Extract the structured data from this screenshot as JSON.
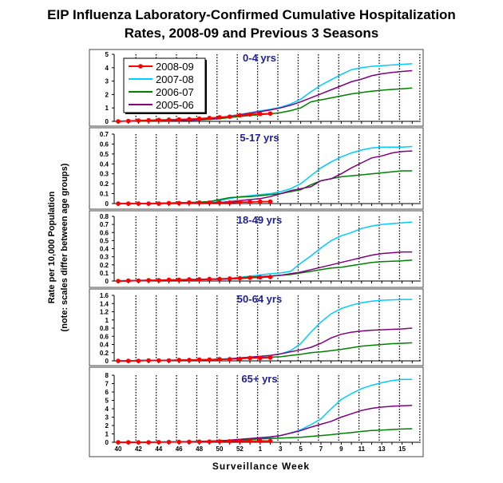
{
  "title_line1": "EIP Influenza Laboratory-Confirmed Cumulative Hospitalization",
  "title_line2": "Rates, 2008-09 and Previous 3 Seasons",
  "ylabel_line1": "Rate per 10,000 Population",
  "ylabel_line2": "(note: scales differ between age groups)",
  "xlabel": "Surveillance Week",
  "chart_data": {
    "type": "line",
    "title": "EIP Influenza Laboratory-Confirmed Cumulative Hospitalization Rates, 2008-09 and Previous 3 Seasons",
    "xlabel": "Surveillance Week",
    "ylabel": "Rate per 10,000 Population (note: scales differ between age groups)",
    "x": [
      "40",
      "41",
      "42",
      "43",
      "44",
      "45",
      "46",
      "47",
      "48",
      "49",
      "50",
      "51",
      "52",
      "53",
      "1",
      "2",
      "3",
      "4",
      "5",
      "6",
      "7",
      "8",
      "9",
      "10",
      "11",
      "12",
      "13",
      "14",
      "15",
      "16"
    ],
    "x_tick_labels": [
      "40",
      "42",
      "44",
      "46",
      "48",
      "50",
      "52",
      "1",
      "3",
      "5",
      "7",
      "9",
      "11",
      "13",
      "15"
    ],
    "legend": [
      "2008-09",
      "2007-08",
      "2006-07",
      "2005-06"
    ],
    "legend_placement": "top-left of first panel",
    "colors": {
      "2008-09": "#ff0000",
      "2007-08": "#00ccff",
      "2006-07": "#008000",
      "2005-06": "#800080"
    },
    "panels": [
      {
        "title": "0-4 yrs",
        "ylim": [
          0,
          5
        ],
        "yticks": [
          "0",
          "1",
          "2",
          "3",
          "4",
          "5"
        ],
        "series": [
          {
            "name": "2007-08",
            "values": [
              0.02,
              0.03,
              0.04,
              0.05,
              0.07,
              0.09,
              0.1,
              0.12,
              0.15,
              0.2,
              0.28,
              0.4,
              0.52,
              0.65,
              0.78,
              0.9,
              1.05,
              1.3,
              1.65,
              2.2,
              2.7,
              3.1,
              3.5,
              3.85,
              4.0,
              4.1,
              4.15,
              4.2,
              4.25,
              4.3
            ]
          },
          {
            "name": "2006-07",
            "values": [
              0.01,
              0.01,
              0.02,
              0.03,
              0.04,
              0.05,
              0.06,
              0.08,
              0.1,
              0.14,
              0.2,
              0.28,
              0.36,
              0.44,
              0.5,
              0.56,
              0.65,
              0.8,
              1.0,
              1.45,
              1.6,
              1.75,
              1.9,
              2.05,
              2.15,
              2.25,
              2.32,
              2.38,
              2.43,
              2.48
            ]
          },
          {
            "name": "2005-06",
            "values": [
              0.01,
              0.02,
              0.03,
              0.04,
              0.05,
              0.06,
              0.08,
              0.1,
              0.12,
              0.18,
              0.25,
              0.35,
              0.48,
              0.6,
              0.72,
              0.85,
              1.0,
              1.2,
              1.45,
              1.75,
              2.05,
              2.35,
              2.65,
              2.95,
              3.15,
              3.4,
              3.55,
              3.65,
              3.72,
              3.78
            ]
          },
          {
            "name": "2008-09",
            "values": [
              0,
              0.03,
              0.06,
              0.08,
              0.1,
              0.12,
              0.14,
              0.16,
              0.2,
              0.25,
              0.3,
              0.35,
              0.45,
              0.52,
              0.55,
              0.58
            ]
          }
        ]
      },
      {
        "title": "5-17 yrs",
        "ylim": [
          0,
          0.7
        ],
        "yticks": [
          "0",
          "0.1",
          "0.2",
          "0.3",
          "0.4",
          "0.5",
          "0.6",
          "0.7"
        ],
        "series": [
          {
            "name": "2007-08",
            "values": [
              0,
              0,
              0,
              0,
              0.005,
              0.005,
              0.01,
              0.01,
              0.01,
              0.02,
              0.03,
              0.05,
              0.07,
              0.08,
              0.09,
              0.1,
              0.12,
              0.15,
              0.2,
              0.28,
              0.36,
              0.42,
              0.47,
              0.51,
              0.54,
              0.56,
              0.57,
              0.57,
              0.57,
              0.575
            ]
          },
          {
            "name": "2006-07",
            "values": [
              0,
              0,
              0,
              0,
              0.005,
              0.005,
              0.01,
              0.01,
              0.015,
              0.02,
              0.04,
              0.06,
              0.065,
              0.07,
              0.08,
              0.09,
              0.1,
              0.12,
              0.14,
              0.19,
              0.23,
              0.25,
              0.27,
              0.28,
              0.29,
              0.3,
              0.31,
              0.32,
              0.33,
              0.33
            ]
          },
          {
            "name": "2005-06",
            "values": [
              0,
              0,
              0,
              0,
              0,
              0,
              0,
              0.005,
              0.005,
              0.01,
              0.01,
              0.02,
              0.03,
              0.04,
              0.05,
              0.07,
              0.1,
              0.13,
              0.15,
              0.17,
              0.23,
              0.25,
              0.3,
              0.36,
              0.41,
              0.46,
              0.48,
              0.51,
              0.525,
              0.53
            ]
          },
          {
            "name": "2008-09",
            "values": [
              0,
              0,
              0,
              0,
              0,
              0.005,
              0.005,
              0.01,
              0.01,
              0.01,
              0.01,
              0.01,
              0.015,
              0.015,
              0.02,
              0.02
            ]
          }
        ]
      },
      {
        "title": "18-49 yrs",
        "ylim": [
          0,
          0.8
        ],
        "yticks": [
          "0",
          "0.1",
          "0.2",
          "0.3",
          "0.4",
          "0.5",
          "0.6",
          "0.7",
          "0.8"
        ],
        "series": [
          {
            "name": "2007-08",
            "values": [
              0.005,
              0.005,
              0.01,
              0.01,
              0.01,
              0.015,
              0.015,
              0.02,
              0.02,
              0.025,
              0.03,
              0.035,
              0.045,
              0.06,
              0.075,
              0.09,
              0.1,
              0.12,
              0.22,
              0.31,
              0.41,
              0.5,
              0.56,
              0.6,
              0.65,
              0.68,
              0.7,
              0.71,
              0.72,
              0.73
            ]
          },
          {
            "name": "2006-07",
            "values": [
              0,
              0,
              0.005,
              0.005,
              0.01,
              0.01,
              0.01,
              0.015,
              0.02,
              0.02,
              0.025,
              0.03,
              0.04,
              0.05,
              0.055,
              0.06,
              0.07,
              0.08,
              0.1,
              0.12,
              0.14,
              0.16,
              0.17,
              0.19,
              0.21,
              0.23,
              0.24,
              0.245,
              0.25,
              0.26
            ]
          },
          {
            "name": "2005-06",
            "values": [
              0,
              0,
              0.005,
              0.005,
              0.01,
              0.01,
              0.01,
              0.015,
              0.015,
              0.02,
              0.02,
              0.025,
              0.03,
              0.04,
              0.05,
              0.06,
              0.07,
              0.09,
              0.11,
              0.14,
              0.17,
              0.2,
              0.23,
              0.26,
              0.29,
              0.32,
              0.34,
              0.35,
              0.36,
              0.36
            ]
          },
          {
            "name": "2008-09",
            "values": [
              0,
              0.005,
              0.005,
              0.01,
              0.01,
              0.015,
              0.015,
              0.02,
              0.02,
              0.025,
              0.025,
              0.03,
              0.035,
              0.04,
              0.045,
              0.05
            ]
          }
        ]
      },
      {
        "title": "50-64 yrs",
        "ylim": [
          0,
          1.6
        ],
        "yticks": [
          "0",
          "0.2",
          "0.4",
          "0.6",
          "0.8",
          "1",
          "1.2",
          "1.4",
          "1.6"
        ],
        "series": [
          {
            "name": "2007-08",
            "values": [
              0,
              0,
              0.01,
              0.01,
              0.01,
              0.02,
              0.02,
              0.02,
              0.03,
              0.03,
              0.04,
              0.05,
              0.07,
              0.09,
              0.11,
              0.13,
              0.17,
              0.25,
              0.42,
              0.7,
              0.95,
              1.15,
              1.28,
              1.36,
              1.42,
              1.46,
              1.48,
              1.49,
              1.5,
              1.5
            ]
          },
          {
            "name": "2006-07",
            "values": [
              0,
              0,
              0.01,
              0.01,
              0.01,
              0.01,
              0.02,
              0.02,
              0.02,
              0.03,
              0.03,
              0.04,
              0.06,
              0.07,
              0.08,
              0.09,
              0.1,
              0.13,
              0.16,
              0.2,
              0.22,
              0.25,
              0.28,
              0.32,
              0.36,
              0.38,
              0.4,
              0.42,
              0.43,
              0.44
            ]
          },
          {
            "name": "2005-06",
            "values": [
              0,
              0,
              0.01,
              0.01,
              0.01,
              0.01,
              0.02,
              0.02,
              0.02,
              0.03,
              0.04,
              0.05,
              0.07,
              0.09,
              0.11,
              0.13,
              0.17,
              0.22,
              0.27,
              0.33,
              0.43,
              0.56,
              0.65,
              0.7,
              0.73,
              0.75,
              0.76,
              0.77,
              0.78,
              0.8
            ]
          },
          {
            "name": "2008-09",
            "values": [
              0,
              0,
              0,
              0.01,
              0.01,
              0.01,
              0.02,
              0.02,
              0.03,
              0.03,
              0.04,
              0.04,
              0.05,
              0.07,
              0.07,
              0.08
            ]
          }
        ]
      },
      {
        "title": "65+ yrs",
        "ylim": [
          0,
          8
        ],
        "yticks": [
          "0",
          "1",
          "2",
          "3",
          "4",
          "5",
          "6",
          "7",
          "8"
        ],
        "series": [
          {
            "name": "2007-08",
            "values": [
              0,
              0,
              0,
              0.02,
              0.05,
              0.07,
              0.08,
              0.1,
              0.12,
              0.15,
              0.18,
              0.22,
              0.28,
              0.35,
              0.45,
              0.6,
              0.8,
              1.1,
              1.5,
              2.1,
              2.8,
              4.0,
              5.1,
              5.8,
              6.4,
              6.8,
              7.1,
              7.35,
              7.5,
              7.5
            ]
          },
          {
            "name": "2006-07",
            "values": [
              0,
              0,
              0.01,
              0.01,
              0.02,
              0.03,
              0.05,
              0.08,
              0.1,
              0.14,
              0.18,
              0.22,
              0.28,
              0.33,
              0.4,
              0.45,
              0.5,
              0.55,
              0.6,
              0.7,
              0.8,
              0.9,
              1.05,
              1.15,
              1.3,
              1.4,
              1.45,
              1.52,
              1.58,
              1.62
            ]
          },
          {
            "name": "2005-06",
            "values": [
              0,
              0,
              0,
              0.01,
              0.02,
              0.03,
              0.04,
              0.06,
              0.09,
              0.12,
              0.18,
              0.25,
              0.35,
              0.45,
              0.55,
              0.65,
              0.8,
              1.1,
              1.4,
              1.8,
              2.15,
              2.5,
              3.0,
              3.4,
              3.8,
              4.05,
              4.2,
              4.3,
              4.35,
              4.4
            ]
          },
          {
            "name": "2008-09",
            "values": [
              0,
              0,
              0,
              0,
              0.02,
              0.03,
              0.04,
              0.05,
              0.07,
              0.08,
              0.1,
              0.12,
              0.14,
              0.15,
              0.15,
              0.15
            ]
          }
        ]
      }
    ]
  }
}
